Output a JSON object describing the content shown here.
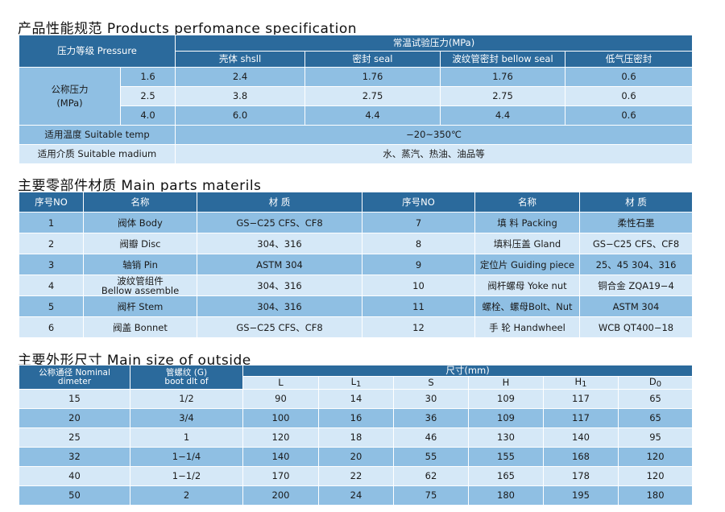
{
  "section1": {
    "title": "产品性能规范  Products  perfomance  specification",
    "pressure_grade": "压力等级 Pressure",
    "test_pressure": "常温试验压力(MPa)",
    "cols": [
      "壳体 shsll",
      "密封 seal",
      "波纹管密封 bellow  seal",
      "低气压密封"
    ],
    "nominal_label": "公称压力\n(MPa)",
    "rows": [
      {
        "p": "1.6",
        "v": [
          "2.4",
          "1.76",
          "1.76",
          "0.6"
        ]
      },
      {
        "p": "2.5",
        "v": [
          "3.8",
          "2.75",
          "2.75",
          "0.6"
        ]
      },
      {
        "p": "4.0",
        "v": [
          "6.0",
          "4.4",
          "4.4",
          "0.6"
        ]
      }
    ],
    "temp_label": "适用温度 Suitable temp",
    "temp_value": "−20~350℃",
    "medium_label": "适用介质 Suitable madium",
    "medium_value": "水、蒸汽、热油、油品等"
  },
  "section2": {
    "title": "主要零部件材质  Main  parts  materils",
    "headers": [
      "序号NO",
      "名称",
      "材  质",
      "序号NO",
      "名称",
      "材  质"
    ],
    "rows": [
      [
        "1",
        "阀体  Body",
        "GS−C25  CFS、CF8",
        "7",
        "填 料  Packing",
        "柔性石墨"
      ],
      [
        "2",
        "阀瓣 Disc",
        "304、316",
        "8",
        "填料压盖 Gland",
        "GS−C25  CFS、CF8"
      ],
      [
        "3",
        "轴销 Pin",
        "ASTM 304",
        "9",
        "定位片 Guiding piece",
        "25、45 304、316"
      ],
      [
        "4",
        "波纹管组件\nBellow assemble",
        "304、316",
        "10",
        "阀杆螺母 Yoke nut",
        "铜合金 ZQA19−4"
      ],
      [
        "5",
        "阀杆 Stem",
        "304、316",
        "11",
        "螺栓、螺母Bolt、Nut",
        "ASTM 304"
      ],
      [
        "6",
        "阀盖 Bonnet",
        "GS−C25  CFS、CF8",
        "12",
        "手  轮 Handwheel",
        "WCB QT400−18"
      ]
    ]
  },
  "section3": {
    "title": "主要外形尺寸  Main  size  of  outside",
    "nominal": "公称通径 Nominal\ndimeter",
    "thread": "管螺纹 (G)\nboot dlt of",
    "size_label": "尺寸(mm)",
    "cols": [
      {
        "main": "L",
        "sub": ""
      },
      {
        "main": "L",
        "sub": "1"
      },
      {
        "main": "S",
        "sub": ""
      },
      {
        "main": "H",
        "sub": ""
      },
      {
        "main": "H",
        "sub": "1"
      },
      {
        "main": "D",
        "sub": "0"
      }
    ],
    "rows": [
      [
        "15",
        "1/2",
        "90",
        "14",
        "30",
        "109",
        "117",
        "65"
      ],
      [
        "20",
        "3/4",
        "100",
        "16",
        "36",
        "109",
        "117",
        "65"
      ],
      [
        "25",
        "1",
        "120",
        "18",
        "46",
        "130",
        "140",
        "95"
      ],
      [
        "32",
        "1−1/4",
        "140",
        "20",
        "55",
        "155",
        "168",
        "120"
      ],
      [
        "40",
        "1−1/2",
        "170",
        "22",
        "62",
        "165",
        "178",
        "120"
      ],
      [
        "50",
        "2",
        "200",
        "24",
        "75",
        "180",
        "195",
        "180"
      ]
    ]
  }
}
